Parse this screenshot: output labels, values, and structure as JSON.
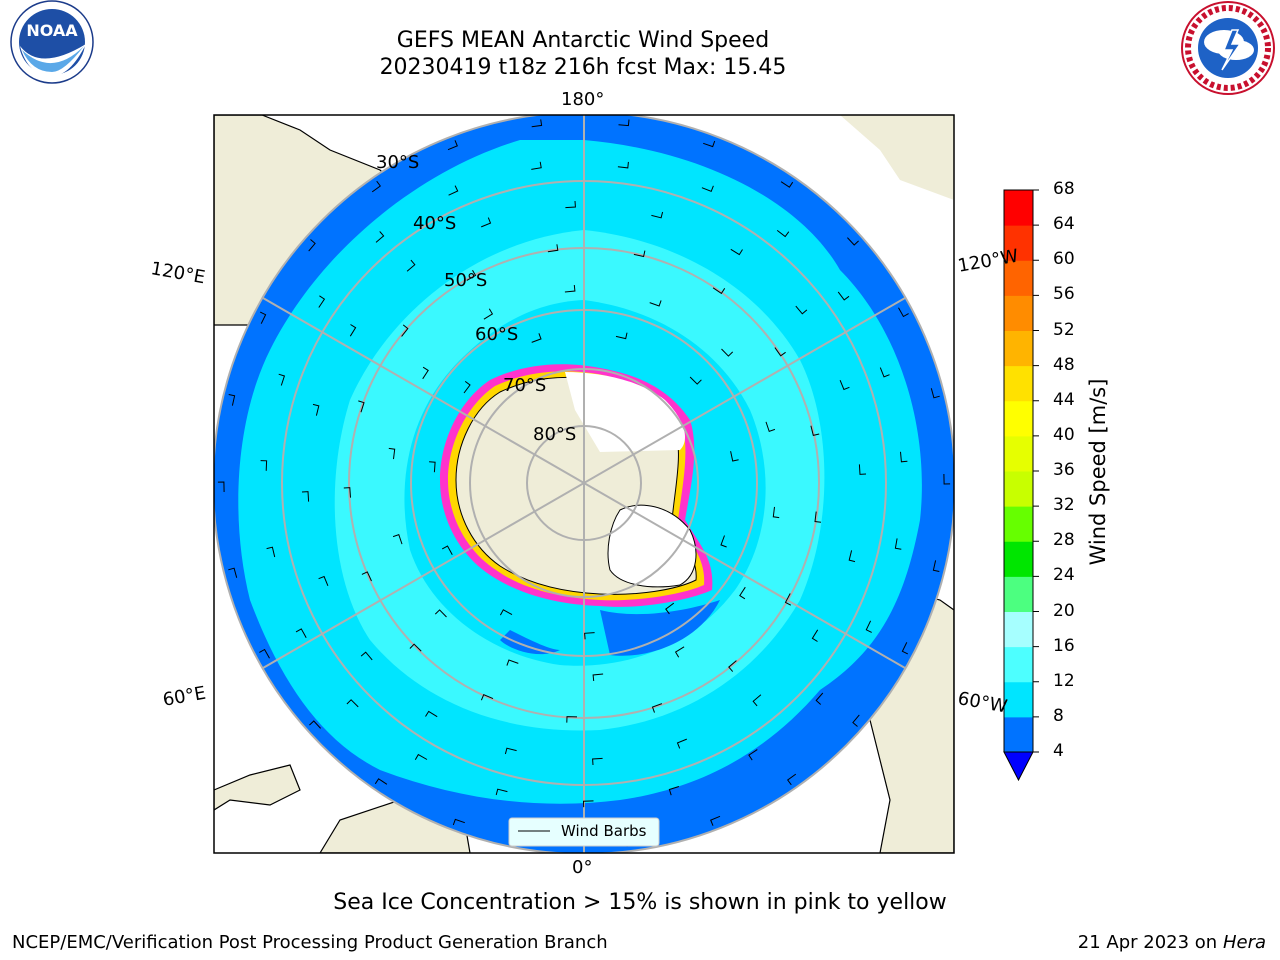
{
  "header": {
    "title_line1": "GEFS MEAN Antarctic Wind Speed",
    "title_line2": "20230419 t18z 216h fcst   Max: 15.45"
  },
  "logos": {
    "left": {
      "name": "noara-logo",
      "text": "NOAA",
      "ring_text": "NATIONAL OCEANIC AND ATMOSPHERIC ADMINISTRATION · U.S. DEPARTMENT OF COMMERCE"
    },
    "right": {
      "name": "nws-logo",
      "ring_text": "NATIONAL WEATHER SERVICE"
    }
  },
  "map": {
    "longitude_labels": {
      "top": "180°",
      "bottom": "0°",
      "upper_left": "120°E",
      "upper_right": "120°W",
      "lower_left": "60°E",
      "lower_right": "60°W"
    },
    "latitude_labels": [
      "30°S",
      "40°S",
      "50°S",
      "60°S",
      "70°S",
      "80°S"
    ],
    "legend_label": "Wind Barbs",
    "colors": {
      "land": "#efedd8",
      "ice_interior": "#ffffff",
      "sea_ice_edge": "#ff33cc",
      "grid": "#b0b0b0"
    }
  },
  "colorbar": {
    "label": "Wind Speed [m/s]",
    "ticks": [
      "4",
      "8",
      "12",
      "16",
      "20",
      "24",
      "28",
      "32",
      "36",
      "40",
      "44",
      "48",
      "52",
      "56",
      "60",
      "64",
      "68"
    ],
    "colors": [
      "#0073ff",
      "#00e5ff",
      "#4dffff",
      "#a6ffff",
      "#4cff80",
      "#00e600",
      "#66ff00",
      "#c8ff00",
      "#e6ff00",
      "#ffff00",
      "#ffe100",
      "#ffb400",
      "#ff8c00",
      "#ff6400",
      "#ff3200",
      "#ff0000"
    ],
    "extend_color": "#0000ff"
  },
  "caption": "Sea Ice Concentration > 15% is shown in pink to yellow",
  "footer": {
    "left": "NCEP/EMC/Verification Post Processing Product Generation Branch",
    "right_prefix": "21 Apr 2023 on ",
    "right_italic": "Hera"
  }
}
